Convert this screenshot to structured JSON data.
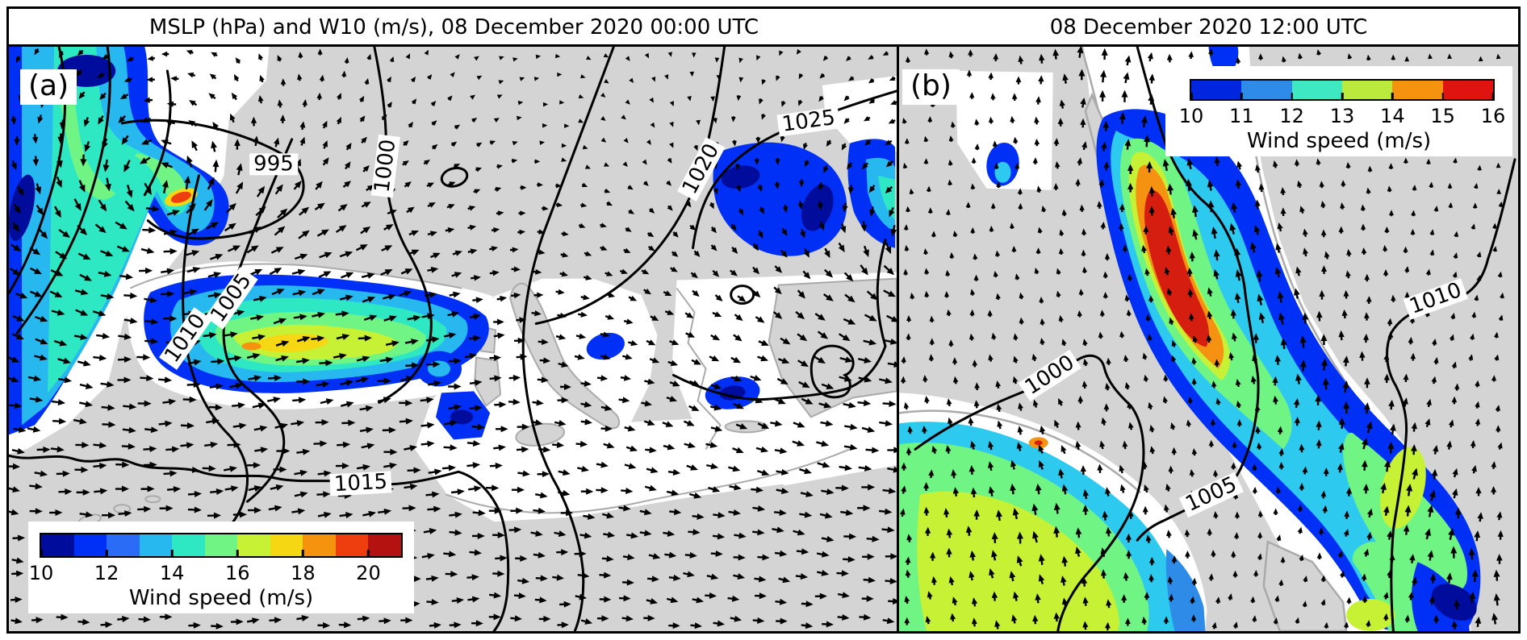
{
  "figure": {
    "kind": "two-panel meteorological map (MSLP contours, 10-m wind speed shading, wind vectors)",
    "land_color": "#d4d4d4",
    "low_wind_color": "#ffffff",
    "contour_color": "#000000"
  },
  "chart_data": [
    {
      "type": "heatmap",
      "panel": "a",
      "panel_label": "(a)",
      "title": "MSLP (hPa) and W10 (m/s), 08 December 2020 00:00 UTC",
      "fields": [
        "mean sea level pressure contours (hPa)",
        "10-m wind speed filled contours (m/s)",
        "10-m wind vectors"
      ],
      "isobar_labels": [
        "995",
        "1000",
        "1005",
        "1010",
        "1015",
        "1020",
        "1025"
      ],
      "isobar_interval_hpa": 5,
      "colorbar": {
        "label": "Wind speed (m/s)",
        "ticks": [
          10,
          12,
          14,
          16,
          18,
          20
        ],
        "range": [
          10,
          21
        ],
        "colors": [
          "#000c9c",
          "#0030f5",
          "#2a6cf5",
          "#28b8f0",
          "#2ee8c4",
          "#70f585",
          "#c6f135",
          "#f5d813",
          "#f5930f",
          "#ee3d0e",
          "#b41211"
        ]
      },
      "features": [
        "cyclone with closed 995 hPa isobar and curved wind-speed band over the NE Atlantic",
        "elongated strong-wind band (blue to yellow shading) across the western Mediterranean",
        "1025 hPa high over northeastern Europe",
        "scattered blue wind patches over the Aegean/Black Sea region"
      ]
    },
    {
      "type": "heatmap",
      "panel": "b",
      "panel_label": "(b)",
      "title": "08 December 2020 12:00 UTC",
      "fields": [
        "mean sea level pressure contours (hPa)",
        "10-m wind speed filled contours (m/s)",
        "10-m wind vectors"
      ],
      "isobar_labels": [
        "1000",
        "1005",
        "1010"
      ],
      "isobar_interval_hpa": 5,
      "colorbar": {
        "label": "Wind speed (m/s)",
        "ticks": [
          10,
          11,
          12,
          13,
          14,
          15,
          16
        ],
        "range": [
          10,
          16
        ],
        "colors": [
          "#0026e0",
          "#2e8ce8",
          "#3ee8c0",
          "#bcea3c",
          "#f5930f",
          "#df1310"
        ]
      },
      "features": [
        "southerly wind maximum exceeding 15 m/s (red core) over the Adriatic Sea",
        "secondary wind-speed maximum over the Tyrrhenian Sea",
        "northward wind vectors along the wind band"
      ]
    }
  ]
}
